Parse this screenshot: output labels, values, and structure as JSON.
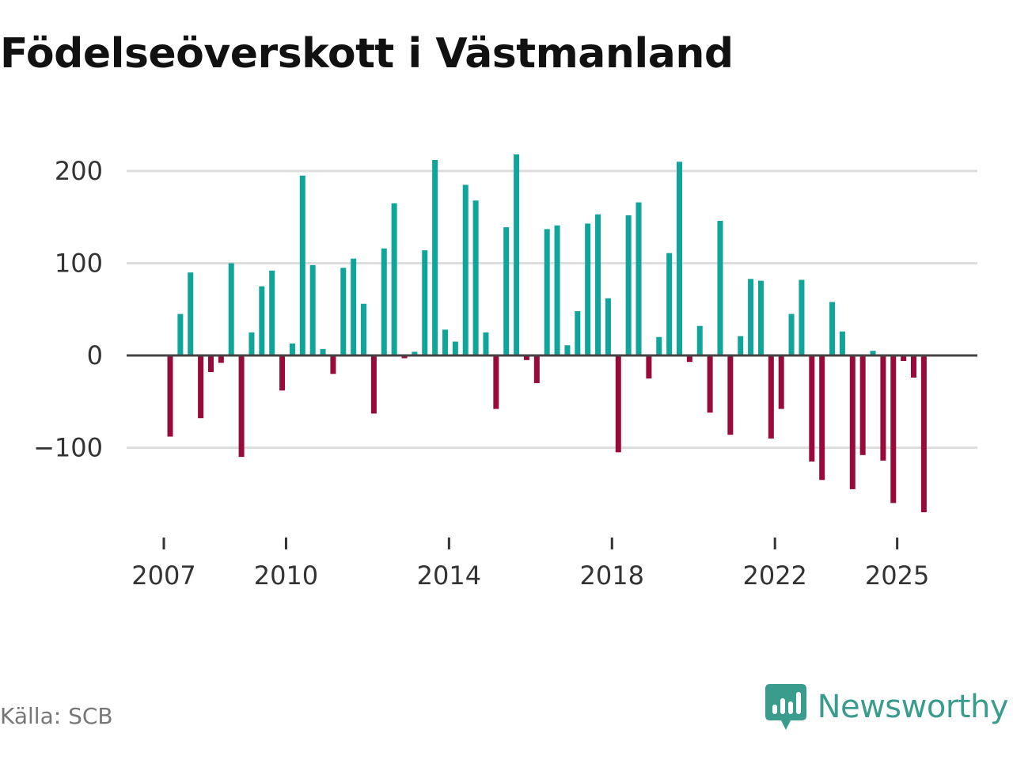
{
  "title": "Födelseöverskott i Västmanland",
  "source": "Källa: SCB",
  "brand": {
    "name": "Newsworthy",
    "icon": "newsworthy-logo-icon"
  },
  "colors": {
    "positive": "#0fa59a",
    "negative": "#990a3c",
    "grid": "#dddddd",
    "zero_line": "#444444",
    "brand": "#3a9c8c"
  },
  "chart_data": {
    "type": "bar",
    "title": "Födelseöverskott i Västmanland",
    "xlabel": "",
    "ylabel": "",
    "ylim": [
      -180,
      240
    ],
    "y_ticks": [
      200,
      100,
      0,
      -100
    ],
    "y_tick_labels": [
      "200",
      "100",
      "0",
      "−100"
    ],
    "x_ticks": [
      {
        "label": "2007",
        "index": 0
      },
      {
        "label": "2010",
        "index": 12
      },
      {
        "label": "2014",
        "index": 28
      },
      {
        "label": "2018",
        "index": 44
      },
      {
        "label": "2022",
        "index": 60
      },
      {
        "label": "2025",
        "index": 72
      }
    ],
    "x_start_year": 2007,
    "frequency": "quarterly",
    "values": [
      -88,
      45,
      90,
      -68,
      -18,
      -8,
      100,
      -110,
      25,
      75,
      92,
      -38,
      13,
      195,
      98,
      7,
      -20,
      95,
      105,
      56,
      -63,
      116,
      165,
      -3,
      4,
      114,
      212,
      28,
      15,
      185,
      168,
      25,
      -58,
      139,
      218,
      -5,
      -30,
      137,
      141,
      11,
      48,
      143,
      153,
      62,
      -105,
      152,
      166,
      -25,
      20,
      111,
      210,
      -7,
      32,
      -62,
      146,
      -86,
      21,
      83,
      81,
      -90,
      -58,
      45,
      82,
      -115,
      -135,
      58,
      26,
      -145,
      -108,
      5,
      -114,
      -160,
      -6,
      -24,
      -170
    ]
  }
}
